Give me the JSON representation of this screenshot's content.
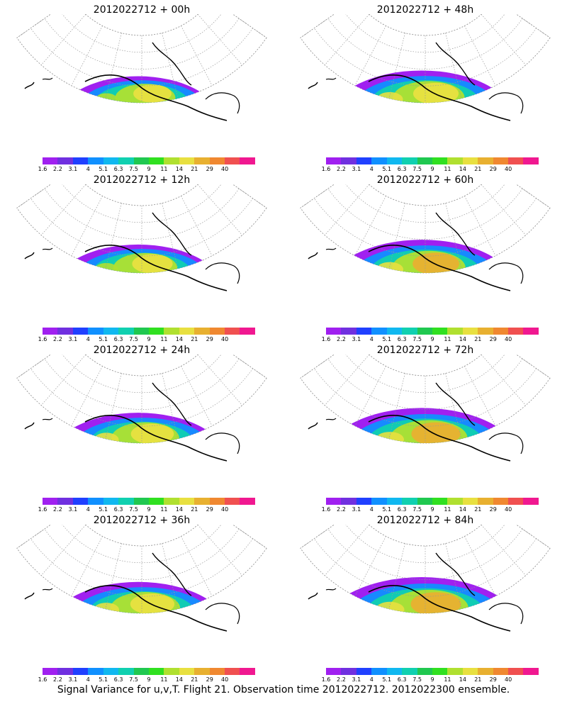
{
  "panels": [
    {
      "title": "2012022712 + 00h"
    },
    {
      "title": "2012022712 + 48h"
    },
    {
      "title": "2012022712 + 12h"
    },
    {
      "title": "2012022712 + 60h"
    },
    {
      "title": "2012022712 + 24h"
    },
    {
      "title": "2012022712 + 72h"
    },
    {
      "title": "2012022712 + 36h"
    },
    {
      "title": "2012022712 + 84h"
    }
  ],
  "colorbar": {
    "tick_labels": [
      "1.6",
      "2.2",
      "3.1",
      "4",
      "5.1",
      "6.3",
      "7.5",
      "9",
      "11",
      "14",
      "21",
      "29",
      "40"
    ],
    "colors": [
      "#a020f0",
      "#7030e0",
      "#2040ff",
      "#1090ff",
      "#10b8f0",
      "#10d0b0",
      "#20c850",
      "#30e020",
      "#b0e030",
      "#e8e040",
      "#e8b030",
      "#f08830",
      "#f05050",
      "#f01890"
    ]
  },
  "caption": "Signal Variance for u,v,T. Flight 21. Observation time 2012022712. 2012022300 ensemble."
}
